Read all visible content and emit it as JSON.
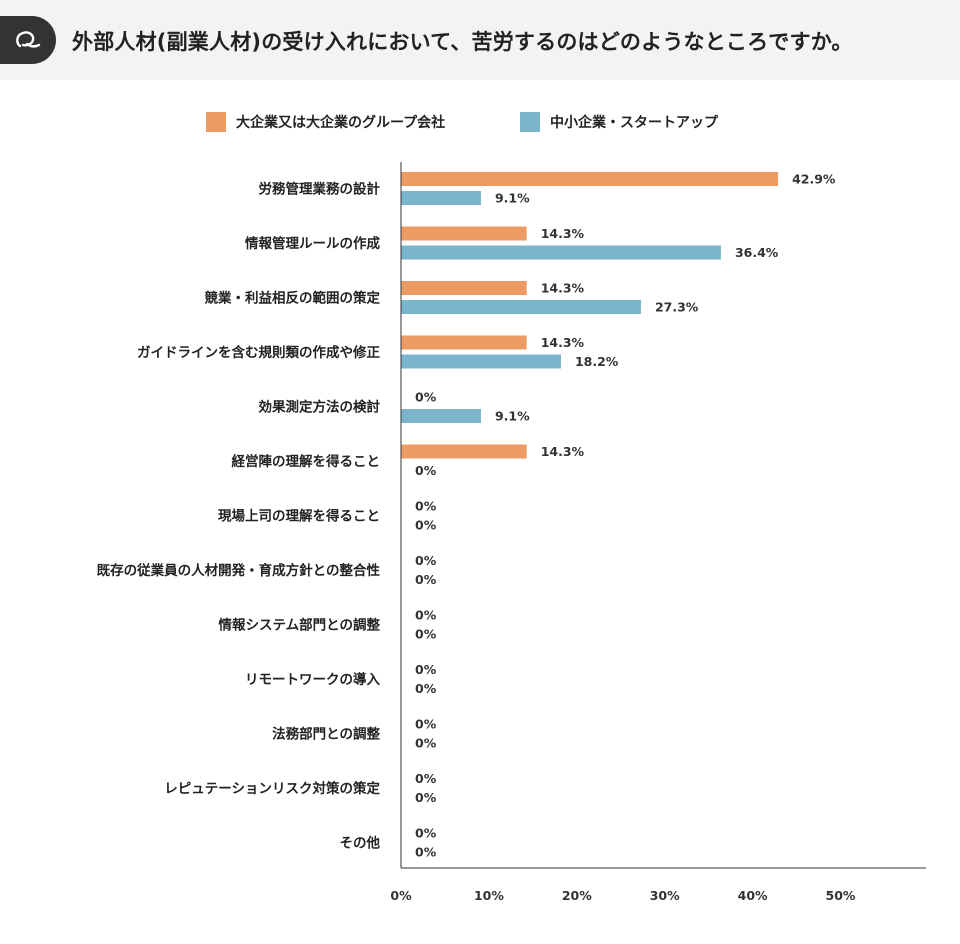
{
  "header": {
    "badge_icon": "q-letter-icon",
    "question": "外部人材(副業人材)の受け入れにおいて、苦労するのはどのようなところですか。"
  },
  "colors": {
    "large": "#ec9b64",
    "small": "#7ab5cc",
    "header_bg": "#f3f3f3",
    "badge_bg": "#333333"
  },
  "chart_data": {
    "type": "bar",
    "orientation": "horizontal",
    "categories": [
      "労務管理業務の設計",
      "情報管理ルールの作成",
      "競業・利益相反の範囲の策定",
      "ガイドラインを含む規則類の作成や修正",
      "効果測定方法の検討",
      "経営陣の理解を得ること",
      "現場上司の理解を得ること",
      "既存の従業員の人材開発・育成方針との整合性",
      "情報システム部門との調整",
      "リモートワークの導入",
      "法務部門との調整",
      "レピュテーションリスク対策の策定",
      "その他"
    ],
    "series": [
      {
        "name": "大企業又は大企業のグループ会社",
        "values": [
          42.9,
          14.3,
          14.3,
          14.3,
          0,
          14.3,
          0,
          0,
          0,
          0,
          0,
          0,
          0
        ],
        "labels": [
          "42.9%",
          "14.3%",
          "14.3%",
          "14.3%",
          "0%",
          "14.3%",
          "0%",
          "0%",
          "0%",
          "0%",
          "0%",
          "0%",
          "0%"
        ]
      },
      {
        "name": "中小企業・スタートアップ",
        "values": [
          9.1,
          36.4,
          27.3,
          18.2,
          9.1,
          0,
          0,
          0,
          0,
          0,
          0,
          0,
          0
        ],
        "labels": [
          "9.1%",
          "36.4%",
          "27.3%",
          "18.2%",
          "9.1%",
          "0%",
          "0%",
          "0%",
          "0%",
          "0%",
          "0%",
          "0%",
          "0%"
        ]
      }
    ],
    "xlim": [
      0,
      60
    ],
    "xticks": [
      "0%",
      "10%",
      "20%",
      "30%",
      "40%",
      "50%"
    ],
    "xtick_values": [
      0,
      10,
      20,
      30,
      40,
      50
    ],
    "legend_position": "top",
    "grid": false
  }
}
